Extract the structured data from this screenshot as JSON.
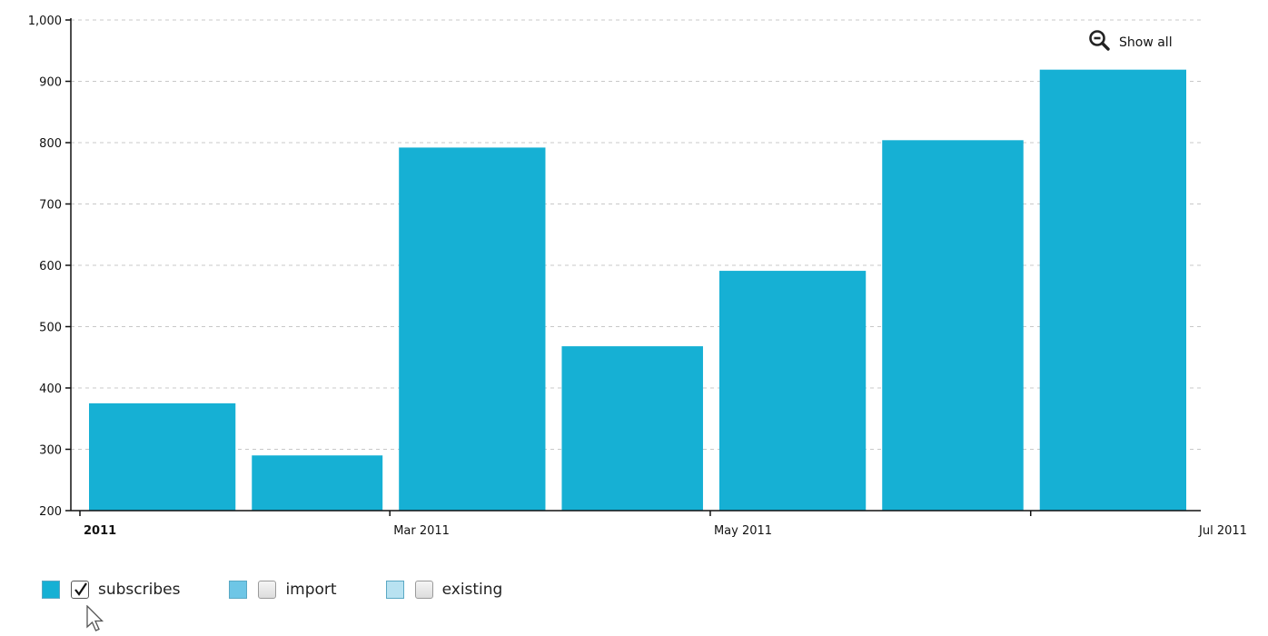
{
  "chart_data": {
    "type": "bar",
    "x": [
      "2011-01",
      "2011-02",
      "2011-03",
      "2011-04",
      "2011-05",
      "2011-06",
      "2011-07"
    ],
    "series": [
      {
        "name": "subscribes",
        "values": [
          375,
          290,
          792,
          468,
          591,
          804,
          919
        ],
        "color": "#16b0d4"
      }
    ],
    "x_ticks": [
      {
        "label": "2011",
        "bold": true
      },
      {
        "label": "Mar 2011",
        "bold": false
      },
      {
        "label": "May 2011",
        "bold": false
      },
      {
        "label": "Jul 2011",
        "bold": false
      }
    ],
    "y_ticks": [
      "1,000",
      "900",
      "800",
      "700",
      "600",
      "500",
      "400",
      "300",
      "200"
    ],
    "ylim": [
      200,
      1000
    ],
    "grid": "horizontal dashed",
    "title": "",
    "xlabel": "",
    "ylabel": ""
  },
  "show_all": {
    "label": "Show all",
    "icon": "zoom-out-icon"
  },
  "legend": [
    {
      "label": "subscribes",
      "checked": true,
      "color": "#16b0d4"
    },
    {
      "label": "import",
      "checked": false,
      "color": "#6ec6e6"
    },
    {
      "label": "existing",
      "checked": false,
      "color": "#b8e2f1"
    }
  ]
}
